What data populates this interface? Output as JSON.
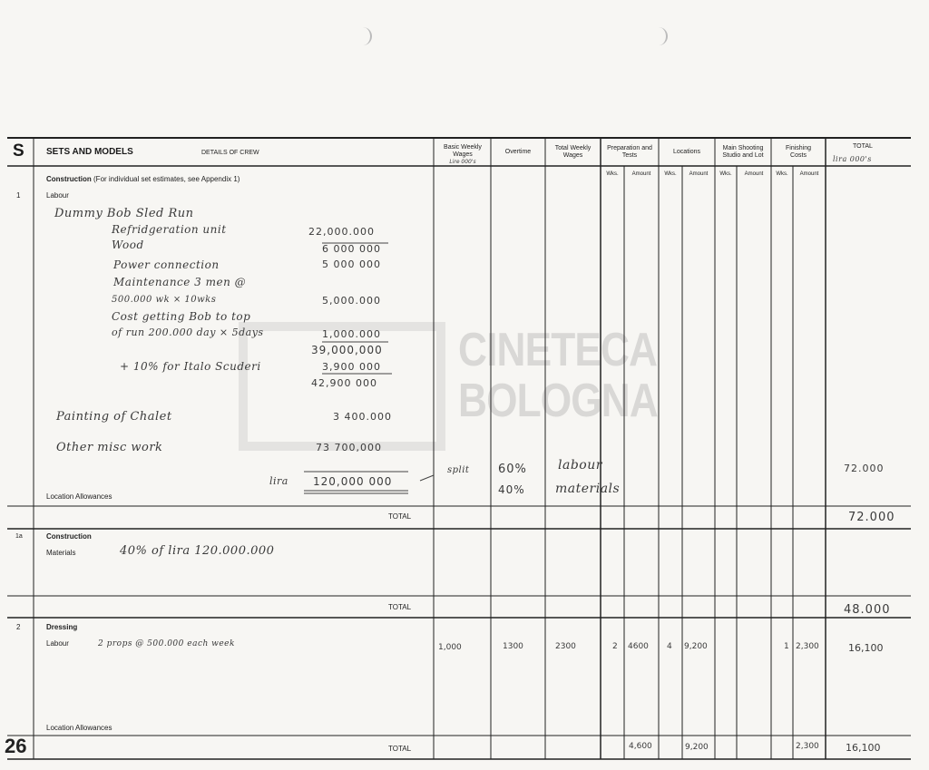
{
  "watermark": {
    "line1": "CINETECA",
    "line2": "BOLOGNA"
  },
  "page_number": "26",
  "header": {
    "section_letter": "S",
    "section_title": "SETS AND MODELS",
    "details": "DETAILS OF CREW",
    "columns": {
      "basic_weekly": "Basic Weekly Wages",
      "basic_note": "Lire 000's",
      "overtime": "Overtime",
      "total_weekly": "Total Weekly Wages",
      "preparation": "Preparation and Tests",
      "locations": "Locations",
      "main_shooting": "Main Shooting Studio and Lot",
      "finishing": "Finishing Costs",
      "total": "TOTAL",
      "total_note": "lira 000's",
      "wks": "Wks.",
      "amount": "Amount"
    }
  },
  "section1": {
    "number": "1",
    "title": "Construction",
    "title_note": "(For individual set estimates, see Appendix 1)",
    "sub": "Labour",
    "lines": [
      {
        "label": "Dummy Bob Sled Run",
        "amount": ""
      },
      {
        "label": "Refridgeration unit",
        "amount": "22,000.000"
      },
      {
        "label": "Wood",
        "amount": "6 000 000"
      },
      {
        "label": "Power connection",
        "amount": "5 000 000"
      },
      {
        "label": "Maintenance 3 men @",
        "amount": ""
      },
      {
        "label": "500.000 wk × 10wks",
        "amount": "5,000.000"
      },
      {
        "label": "Cost getting Bob to top",
        "amount": ""
      },
      {
        "label": "of run 200.000 day × 5days",
        "amount": "1,000.000"
      },
      {
        "label": "",
        "amount": "39,000,000"
      },
      {
        "label": "+ 10% for Italo Scuderi",
        "amount": "3,900 000"
      },
      {
        "label": "",
        "amount": "42,900 000"
      },
      {
        "label": "Painting of Chalet",
        "amount": "3 400.000"
      },
      {
        "label": "Other misc work",
        "amount": "73 700,000"
      }
    ],
    "grand_prefix": "lira",
    "grand_total": "120,000 000",
    "split": "split",
    "split_pct1": "60%",
    "split_pct2": "40%",
    "split_lbl1": "labour",
    "split_lbl2": "materials",
    "total_col": "72.000",
    "location_allowances": "Location Allowances",
    "total_label": "TOTAL",
    "total_value": "72.000"
  },
  "section1a": {
    "number": "1a",
    "title": "Construction",
    "sub": "Materials",
    "note": "40% of lira 120.000.000",
    "total_label": "TOTAL",
    "total_value": "48.000"
  },
  "section2": {
    "number": "2",
    "title": "Dressing",
    "sub": "Labour",
    "note": "2 props @ 500.000 each week",
    "basic": "1,000",
    "overtime": "1300",
    "total_weekly": "2300",
    "prep_wks": "2",
    "prep_amount": "4600",
    "loc_wks": "4",
    "loc_amount": "9,200",
    "fin_wks": "1",
    "fin_amount": "2,300",
    "total": "16,100",
    "location_allowances": "Location Allowances",
    "total_label": "TOTAL",
    "tot_prep": "4,600",
    "tot_loc": "9,200",
    "tot_fin": "2,300",
    "tot_total": "16,100"
  }
}
